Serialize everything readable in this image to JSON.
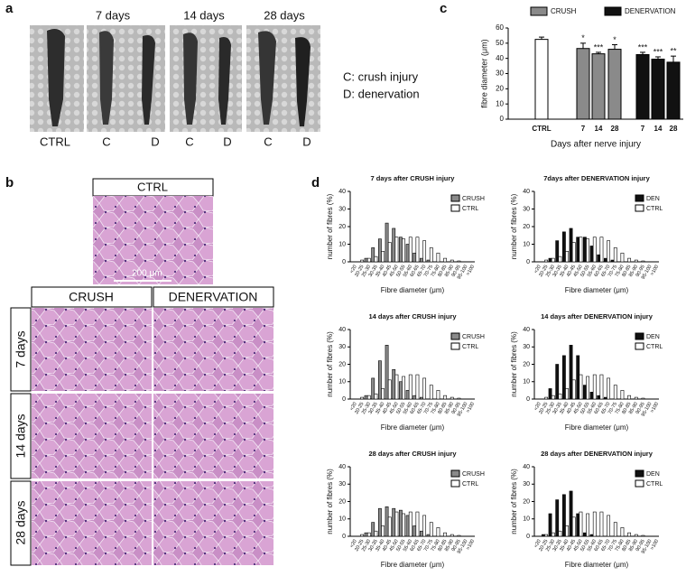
{
  "panels": {
    "a": {
      "label": "a",
      "columns": [
        "7 days",
        "14 days",
        "28 days"
      ],
      "sample_labels": [
        "CTRL",
        "C",
        "D",
        "C",
        "D",
        "C",
        "D"
      ],
      "legend": [
        "C: crush injury",
        "D: denervation"
      ]
    },
    "b": {
      "label": "b",
      "ctrl": "CTRL",
      "columns": [
        "CRUSH",
        "DENERVATION"
      ],
      "rows": [
        "7 days",
        "14 days",
        "28 days"
      ],
      "scale_bar": "200 μm"
    },
    "c": {
      "label": "c"
    },
    "d": {
      "label": "d"
    }
  },
  "chart_data": [
    {
      "type": "bar",
      "ylabel": "fibre diameter (μm)",
      "xlabel": "Days after nerve injury",
      "categories": [
        "CTRL",
        "7",
        "14",
        "28",
        "7",
        "14",
        "28"
      ],
      "values": [
        52.5,
        46.5,
        43,
        46,
        42.5,
        39.5,
        37.5
      ],
      "errors": [
        1.5,
        3.5,
        1,
        3,
        1.5,
        1.5,
        4
      ],
      "significance": [
        null,
        "*",
        "***",
        "*",
        "***",
        "***",
        "**"
      ],
      "bar_colors": [
        "#ffffff",
        "#8a8a8a",
        "#8a8a8a",
        "#8a8a8a",
        "#111111",
        "#111111",
        "#111111"
      ],
      "legend": [
        {
          "name": "CRUSH",
          "color": "#8a8a8a"
        },
        {
          "name": "DENERVATION",
          "color": "#111111"
        }
      ],
      "ylim": [
        0,
        60
      ],
      "yticks": [
        0,
        10,
        20,
        30,
        40,
        50,
        60
      ]
    },
    {
      "type": "grouped_bar",
      "title": "7 days after CRUSH injury",
      "ylabel": "number of fibres (%)",
      "xlabel": "Fibre diameter (μm)",
      "categories": [
        "<20",
        "20-25",
        "25-30",
        "30-35",
        "35-40",
        "40-45",
        "45-50",
        "50-55",
        "55-60",
        "60-65",
        "65-70",
        "70-75",
        "75-80",
        "80-85",
        "85-90",
        "90-95",
        "95-100",
        ">100"
      ],
      "series": [
        {
          "name": "CRUSH",
          "color": "#8a8a8a",
          "values": [
            0,
            0,
            2,
            8,
            13,
            22,
            19,
            14,
            10,
            5,
            2,
            1,
            0,
            0,
            0,
            0,
            0,
            0
          ]
        },
        {
          "name": "CTRL",
          "color": "#ffffff",
          "values": [
            0,
            1,
            2,
            3,
            6,
            11,
            14,
            13,
            14,
            14,
            12,
            8,
            5,
            2,
            1,
            0.5,
            0,
            0
          ]
        }
      ],
      "ylim": [
        0,
        40
      ],
      "yticks": [
        0,
        10,
        20,
        30,
        40
      ]
    },
    {
      "type": "grouped_bar",
      "title": "7days after DENERVATION injury",
      "ylabel": "number of fibres (%)",
      "xlabel": "Fibre diameter (μm)",
      "categories": [
        "<20",
        "20-25",
        "25-30",
        "30-35",
        "35-40",
        "40-45",
        "45-50",
        "50-55",
        "55-60",
        "60-65",
        "65-70",
        "70-75",
        "75-80",
        "80-85",
        "85-90",
        "90-95",
        "95-100",
        ">100"
      ],
      "series": [
        {
          "name": "DEN",
          "color": "#111111",
          "values": [
            0,
            0,
            2,
            12,
            17,
            19,
            14,
            14,
            9,
            4,
            2,
            1,
            0,
            0,
            0,
            0,
            0,
            0
          ]
        },
        {
          "name": "CTRL",
          "color": "#ffffff",
          "values": [
            0,
            1,
            2,
            3,
            6,
            11,
            14,
            13,
            14,
            14,
            12,
            8,
            5,
            2,
            1,
            0.5,
            0,
            0
          ]
        }
      ],
      "ylim": [
        0,
        40
      ],
      "yticks": [
        0,
        10,
        20,
        30,
        40
      ]
    },
    {
      "type": "grouped_bar",
      "title": "14 days after CRUSH injury",
      "ylabel": "number of fibres (%)",
      "xlabel": "Fibre diameter (μm)",
      "categories": [
        "<20",
        "20-25",
        "25-30",
        "30-35",
        "35-40",
        "40-45",
        "45-50",
        "50-55",
        "55-60",
        "60-65",
        "65-70",
        "70-75",
        "75-80",
        "80-85",
        "85-90",
        "90-95",
        "95-100",
        ">100"
      ],
      "series": [
        {
          "name": "CRUSH",
          "color": "#8a8a8a",
          "values": [
            0,
            0,
            2,
            12,
            22,
            31,
            17,
            10,
            5,
            2,
            1,
            0,
            0,
            0,
            0,
            0,
            0,
            0
          ]
        },
        {
          "name": "CTRL",
          "color": "#ffffff",
          "values": [
            0,
            1,
            2,
            3,
            6,
            11,
            14,
            13,
            14,
            14,
            12,
            8,
            5,
            2,
            1,
            0.5,
            0,
            0
          ]
        }
      ],
      "ylim": [
        0,
        40
      ],
      "yticks": [
        0,
        10,
        20,
        30,
        40
      ]
    },
    {
      "type": "grouped_bar",
      "title": "14 days after DENERVATION injury",
      "ylabel": "number of fibres (%)",
      "xlabel": "Fibre diameter (μm)",
      "categories": [
        "<20",
        "20-25",
        "25-30",
        "30-35",
        "35-40",
        "40-45",
        "45-50",
        "50-55",
        "55-60",
        "60-65",
        "65-70",
        "70-75",
        "75-80",
        "80-85",
        "85-90",
        "90-95",
        "95-100",
        ">100"
      ],
      "series": [
        {
          "name": "DEN",
          "color": "#111111",
          "values": [
            0,
            0,
            6,
            20,
            25,
            31,
            25,
            8,
            4,
            2,
            1,
            0,
            0,
            0,
            0,
            0,
            0,
            0
          ]
        },
        {
          "name": "CTRL",
          "color": "#ffffff",
          "values": [
            0,
            1,
            2,
            3,
            6,
            11,
            14,
            13,
            14,
            14,
            12,
            8,
            5,
            2,
            1,
            0.5,
            0,
            0
          ]
        }
      ],
      "ylim": [
        0,
        40
      ],
      "yticks": [
        0,
        10,
        20,
        30,
        40
      ]
    },
    {
      "type": "grouped_bar",
      "title": "28 days after CRUSH injury",
      "ylabel": "number of fibres (%)",
      "xlabel": "Fibre diameter (μm)",
      "categories": [
        "<20",
        "20-25",
        "25-30",
        "30-35",
        "35-40",
        "40-45",
        "45-50",
        "50-55",
        "55-60",
        "60-65",
        "65-70",
        "70-75",
        "75-80",
        "80-85",
        "85-90",
        "90-95",
        "95-100",
        ">100"
      ],
      "series": [
        {
          "name": "CRUSH",
          "color": "#8a8a8a",
          "values": [
            0,
            0,
            2,
            8,
            16,
            17,
            16,
            15,
            12,
            6,
            3,
            1,
            0,
            0,
            0,
            0,
            0,
            0
          ]
        },
        {
          "name": "CTRL",
          "color": "#ffffff",
          "values": [
            0,
            1,
            2,
            3,
            6,
            11,
            14,
            13,
            14,
            14,
            12,
            8,
            5,
            2,
            1,
            0.5,
            0,
            0
          ]
        }
      ],
      "ylim": [
        0,
        40
      ],
      "yticks": [
        0,
        10,
        20,
        30,
        40
      ]
    },
    {
      "type": "grouped_bar",
      "title": "28 days after DENERVATION injury",
      "ylabel": "number of fibres (%)",
      "xlabel": "Fibre diameter (μm)",
      "categories": [
        "<20",
        "20-25",
        "25-30",
        "30-35",
        "35-40",
        "40-45",
        "45-50",
        "50-55",
        "55-60",
        "60-65",
        "65-70",
        "70-75",
        "75-80",
        "80-85",
        "85-90",
        "90-95",
        "95-100",
        ">100"
      ],
      "series": [
        {
          "name": "DEN",
          "color": "#111111",
          "values": [
            0,
            1,
            13,
            21,
            24,
            26,
            13,
            2,
            1,
            0,
            0,
            0,
            0,
            0,
            0,
            0,
            0,
            0
          ]
        },
        {
          "name": "CTRL",
          "color": "#ffffff",
          "values": [
            0,
            1,
            2,
            3,
            6,
            11,
            14,
            13,
            14,
            14,
            12,
            8,
            5,
            2,
            1,
            0.5,
            0,
            0
          ]
        }
      ],
      "ylim": [
        0,
        40
      ],
      "yticks": [
        0,
        10,
        20,
        30,
        40
      ]
    }
  ]
}
